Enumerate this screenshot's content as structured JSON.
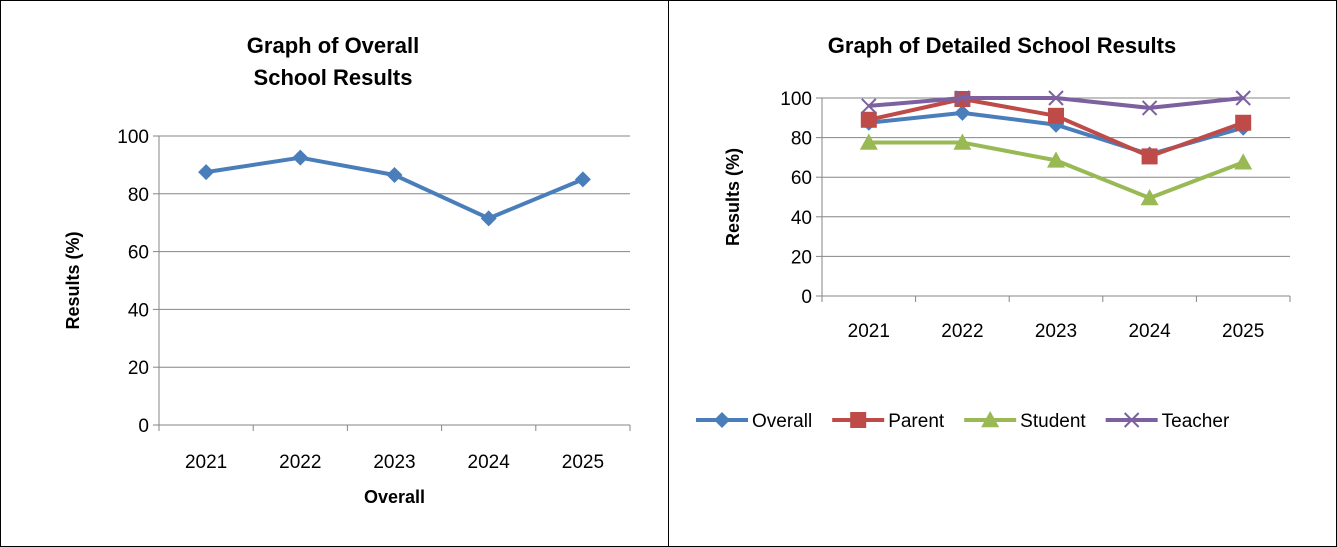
{
  "chart_data": [
    {
      "type": "line",
      "title_lines": [
        "Graph of Overall",
        "School Results"
      ],
      "xlabel": "Overall",
      "ylabel": "Results (%)",
      "categories": [
        "2021",
        "2022",
        "2023",
        "2024",
        "2025"
      ],
      "ylim": [
        0,
        100
      ],
      "yticks": [
        "0",
        "20",
        "40",
        "60",
        "80",
        "100"
      ],
      "grid": true,
      "legend": "none",
      "series": [
        {
          "values": [
            87.5,
            92.5,
            86.5,
            71.5,
            85
          ],
          "color": "#4a7ebb",
          "marker": "diamond"
        }
      ]
    },
    {
      "type": "line",
      "title_lines": [
        "Graph of Detailed School Results"
      ],
      "xlabel": "",
      "ylabel": "Results (%)",
      "categories": [
        "2021",
        "2022",
        "2023",
        "2024",
        "2025"
      ],
      "ylim": [
        0,
        100
      ],
      "yticks": [
        "0",
        "20",
        "40",
        "60",
        "80",
        "100"
      ],
      "grid": true,
      "legend": "bottom",
      "series": [
        {
          "name": "Overall",
          "values": [
            87.5,
            92.5,
            86.5,
            71.5,
            85
          ],
          "color": "#4a7ebb",
          "marker": "diamond"
        },
        {
          "name": "Parent",
          "values": [
            89,
            99.5,
            91,
            70.5,
            87.5
          ],
          "color": "#be4b48",
          "marker": "square"
        },
        {
          "name": "Student",
          "values": [
            77.5,
            77.5,
            68.5,
            49.5,
            67.5
          ],
          "color": "#98b954",
          "marker": "triangle"
        },
        {
          "name": "Teacher",
          "values": [
            96,
            100,
            100,
            95,
            100
          ],
          "color": "#7d60a0",
          "marker": "x"
        }
      ]
    }
  ]
}
